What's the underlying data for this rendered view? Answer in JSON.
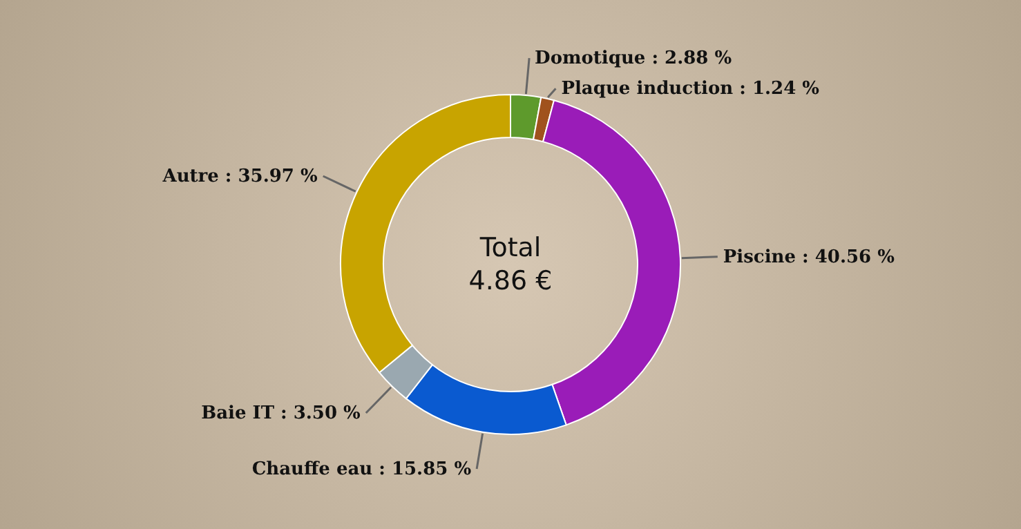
{
  "chart_data": {
    "type": "donut",
    "categories": [
      "Domotique",
      "Plaque induction",
      "Piscine",
      "Chauffe eau",
      "Baie IT",
      "Autre"
    ],
    "values": [
      2.88,
      1.24,
      40.56,
      15.85,
      3.5,
      35.97
    ],
    "colors": [
      "#5e9a2c",
      "#a0521d",
      "#9a1cb8",
      "#0a5ad0",
      "#9aa8b0",
      "#c8a400"
    ],
    "value_labels": [
      ": 2.88 %",
      ": 1.24 %",
      ": 40.56 %",
      ": 15.85 %",
      ": 3.50 %",
      ": 35.97 %"
    ],
    "annotations": [
      "Total",
      "4.86 €"
    ]
  }
}
